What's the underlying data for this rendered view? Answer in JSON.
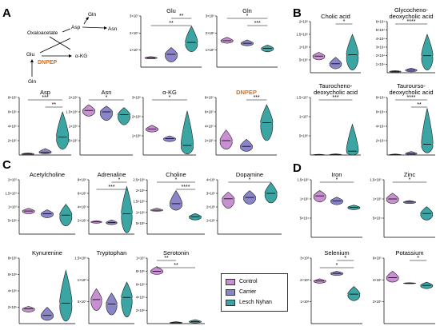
{
  "figure": {
    "panel_letters": [
      "A",
      "B",
      "C",
      "D"
    ],
    "pathway": {
      "nodes": [
        "Oxaloacetate",
        "Asp",
        "Asn",
        "Gln",
        "Glu",
        "α-KG",
        "Gln"
      ],
      "enzyme": "DNPEP",
      "enzyme_color": "#e36c0a"
    },
    "legend": {
      "items": [
        {
          "label": "Control",
          "color": "#c88fd2"
        },
        {
          "label": "Carrier",
          "color": "#8a84c8"
        },
        {
          "label": "Lesch Nyhan",
          "color": "#3aa5a2"
        }
      ]
    }
  },
  "chart_data": [
    {
      "type": "violin",
      "panel": "A",
      "title": "Glu",
      "yticks": [
        "1×10⁷",
        "2×10⁷",
        "3×10⁷"
      ],
      "ylim": [
        0,
        30000000
      ],
      "categories": [
        "Control",
        "Carrier",
        "Lesch Nyhan"
      ],
      "medians": [
        5500000,
        7500000,
        14500000
      ],
      "ranges": [
        [
          4800000,
          6200000
        ],
        [
          3000000,
          11500000
        ],
        [
          9000000,
          24000000
        ]
      ],
      "significance": [
        {
          "pair": [
            1,
            2
          ],
          "label": "**"
        },
        {
          "pair": [
            0,
            2
          ],
          "label": "**"
        }
      ]
    },
    {
      "type": "violin",
      "panel": "A",
      "title": "Gln",
      "yticks": [
        "1×10⁸",
        "2×10⁸",
        "3×10⁸"
      ],
      "ylim": [
        0,
        300000000
      ],
      "categories": [
        "Control",
        "Carrier",
        "Lesch Nyhan"
      ],
      "medians": [
        155000000,
        140000000,
        110000000
      ],
      "ranges": [
        [
          140000000,
          175000000
        ],
        [
          125000000,
          160000000
        ],
        [
          90000000,
          130000000
        ]
      ],
      "significance": [
        {
          "pair": [
            0,
            2
          ],
          "label": "*"
        },
        {
          "pair": [
            1,
            2
          ],
          "label": "***"
        }
      ]
    },
    {
      "type": "violin",
      "panel": "A",
      "title": "Asp",
      "yticks": [
        "2×10⁵",
        "4×10⁵",
        "6×10⁵",
        "8×10⁵"
      ],
      "ylim": [
        0,
        800000
      ],
      "categories": [
        "Control",
        "Carrier",
        "Lesch Nyhan"
      ],
      "medians": [
        15000,
        40000,
        250000
      ],
      "ranges": [
        [
          5000,
          30000
        ],
        [
          15000,
          90000
        ],
        [
          80000,
          600000
        ]
      ],
      "significance": [
        {
          "pair": [
            0,
            2
          ],
          "label": "***"
        },
        {
          "pair": [
            1,
            2
          ],
          "label": "**"
        }
      ]
    },
    {
      "type": "violin",
      "panel": "A",
      "title": "Asn",
      "yticks": [
        "5×10⁵",
        "1×10⁶",
        "1.5×10⁶",
        "2×10⁶"
      ],
      "ylim": [
        0,
        2000000
      ],
      "categories": [
        "Control",
        "Carrier",
        "Lesch Nyhan"
      ],
      "medians": [
        1550000,
        1500000,
        1400000
      ],
      "ranges": [
        [
          1350000,
          1750000
        ],
        [
          1200000,
          1700000
        ],
        [
          1050000,
          1650000
        ]
      ],
      "significance": [
        {
          "pair": [
            0,
            2
          ],
          "label": "*"
        }
      ]
    },
    {
      "type": "violin",
      "panel": "A",
      "title": "α-KG",
      "yticks": [
        "1×10⁶",
        "2×10⁶",
        "3×10⁶"
      ],
      "ylim": [
        0,
        3000000
      ],
      "categories": [
        "Control",
        "Carrier",
        "Lesch Nyhan"
      ],
      "medians": [
        1350000,
        850000,
        500000
      ],
      "ranges": [
        [
          1200000,
          1550000
        ],
        [
          700000,
          1000000
        ],
        [
          50000,
          2300000
        ]
      ],
      "significance": [
        {
          "pair": [
            0,
            2
          ],
          "label": "*"
        }
      ]
    },
    {
      "type": "violin",
      "panel": "A",
      "title": "DNPEP",
      "title_color": "#e36c0a",
      "yticks": [
        "2×10⁵",
        "4×10⁵",
        "6×10⁵",
        "8×10⁵"
      ],
      "ylim": [
        0,
        800000
      ],
      "categories": [
        "Control",
        "Carrier",
        "Lesch Nyhan"
      ],
      "medians": [
        200000,
        120000,
        450000
      ],
      "ranges": [
        [
          80000,
          350000
        ],
        [
          50000,
          220000
        ],
        [
          200000,
          700000
        ]
      ],
      "significance": [
        {
          "pair": [
            1,
            2
          ],
          "label": "***"
        }
      ]
    },
    {
      "type": "violin",
      "panel": "B",
      "title": "Cholic acid",
      "yticks": [
        "5×10⁵",
        "1×10⁶",
        "1.5×10⁶",
        "2×10⁶"
      ],
      "ylim": [
        0,
        2000000
      ],
      "categories": [
        "Control",
        "Carrier",
        "Lesch Nyhan"
      ],
      "medians": [
        650000,
        350000,
        700000
      ],
      "ranges": [
        [
          500000,
          800000
        ],
        [
          150000,
          600000
        ],
        [
          100000,
          1500000
        ]
      ],
      "significance": [
        {
          "pair": [
            1,
            2
          ],
          "label": "*"
        }
      ]
    },
    {
      "type": "violin",
      "panel": "B",
      "title": "Glycocheno-\ndeoxycholic acid",
      "yticks": [
        "1×10⁴",
        "2×10⁴",
        "3×10⁴",
        "4×10⁴",
        "5×10⁴",
        "6×10⁴"
      ],
      "ylim": [
        0,
        60000
      ],
      "categories": [
        "Control",
        "Carrier",
        "Lesch Nyhan"
      ],
      "medians": [
        1500,
        3000,
        20000
      ],
      "ranges": [
        [
          500,
          2500
        ],
        [
          1000,
          5500
        ],
        [
          3000,
          45000
        ]
      ],
      "significance": [
        {
          "pair": [
            0,
            2
          ],
          "label": "****"
        }
      ]
    },
    {
      "type": "violin",
      "panel": "B",
      "title": "Taurocheno-\ndeoxycholic acid",
      "yticks": [
        "5×10⁶",
        "1×10⁷",
        "1.5×10⁷"
      ],
      "ylim": [
        0,
        15000000
      ],
      "categories": [
        "Control",
        "Carrier",
        "Lesch Nyhan"
      ],
      "medians": [
        50000,
        100000,
        1000000
      ],
      "ranges": [
        [
          0,
          200000
        ],
        [
          0,
          300000
        ],
        [
          0,
          8000000
        ]
      ],
      "significance": [
        {
          "pair": [
            0,
            2
          ],
          "label": "***"
        }
      ]
    },
    {
      "type": "violin",
      "panel": "B",
      "title": "Taurourso-\ndeoxycholic acid",
      "yticks": [
        "2×10⁴",
        "4×10⁴",
        "6×10⁴",
        "8×10⁴"
      ],
      "ylim": [
        0,
        80000
      ],
      "categories": [
        "Control",
        "Carrier",
        "Lesch Nyhan"
      ],
      "medians": [
        500,
        2000,
        15000
      ],
      "ranges": [
        [
          0,
          1500
        ],
        [
          500,
          5000
        ],
        [
          3000,
          65000
        ]
      ],
      "significance": [
        {
          "pair": [
            0,
            2
          ],
          "label": "****"
        },
        {
          "pair": [
            1,
            2
          ],
          "label": "**"
        }
      ]
    },
    {
      "type": "violin",
      "panel": "C",
      "title": "Acetylcholine",
      "yticks": [
        "5×10⁶",
        "1×10⁷",
        "1.5×10⁷",
        "2×10⁷"
      ],
      "ylim": [
        0,
        20000000
      ],
      "categories": [
        "Control",
        "Carrier",
        "Lesch Nyhan"
      ],
      "medians": [
        8500000,
        7500000,
        7000000
      ],
      "ranges": [
        [
          7500000,
          9500000
        ],
        [
          6000000,
          9000000
        ],
        [
          3000000,
          11000000
        ]
      ],
      "significance": []
    },
    {
      "type": "violin",
      "panel": "C",
      "title": "Adrenaline",
      "yticks": [
        "2×10⁶",
        "4×10⁶",
        "6×10⁶",
        "8×10⁶"
      ],
      "ylim": [
        0,
        8000000
      ],
      "categories": [
        "Control",
        "Carrier",
        "Lesch Nyhan"
      ],
      "medians": [
        1800000,
        1700000,
        3000000
      ],
      "ranges": [
        [
          1600000,
          2000000
        ],
        [
          1400000,
          2100000
        ],
        [
          200000,
          7000000
        ]
      ],
      "significance": [
        {
          "pair": [
            1,
            2
          ],
          "label": "*"
        },
        {
          "pair": [
            0,
            2
          ],
          "label": "***"
        }
      ]
    },
    {
      "type": "violin",
      "panel": "C",
      "title": "Choline",
      "yticks": [
        "5×10⁵",
        "1×10⁶",
        "1.5×10⁶",
        "2×10⁶",
        "2.5×10⁶"
      ],
      "ylim": [
        0,
        2500000
      ],
      "categories": [
        "Control",
        "Carrier",
        "Lesch Nyhan"
      ],
      "medians": [
        1100000,
        1400000,
        800000
      ],
      "ranges": [
        [
          1050000,
          1200000
        ],
        [
          1100000,
          2000000
        ],
        [
          650000,
          950000
        ]
      ],
      "significance": [
        {
          "pair": [
            0,
            2
          ],
          "label": "*"
        },
        {
          "pair": [
            1,
            2
          ],
          "label": "****"
        }
      ]
    },
    {
      "type": "violin",
      "panel": "C",
      "title": "Dopamine",
      "yticks": [
        "1×10⁶",
        "2×10⁶",
        "3×10⁶",
        "4×10⁶"
      ],
      "ylim": [
        0,
        4000000
      ],
      "categories": [
        "Control",
        "Carrier",
        "Lesch Nyhan"
      ],
      "medians": [
        2600000,
        2700000,
        3000000
      ],
      "ranges": [
        [
          1900000,
          3100000
        ],
        [
          2200000,
          3200000
        ],
        [
          2300000,
          3800000
        ]
      ],
      "significance": [
        {
          "pair": [
            0,
            2
          ],
          "label": "*"
        }
      ]
    },
    {
      "type": "violin",
      "panel": "C",
      "title": "Kynurenine",
      "yticks": [
        "2×10⁶",
        "4×10⁶",
        "6×10⁶",
        "8×10⁶"
      ],
      "ylim": [
        0,
        8000000
      ],
      "categories": [
        "Control",
        "Carrier",
        "Lesch Nyhan"
      ],
      "medians": [
        1800000,
        1000000,
        2500000
      ],
      "ranges": [
        [
          1400000,
          2100000
        ],
        [
          400000,
          2000000
        ],
        [
          300000,
          6500000
        ]
      ],
      "significance": []
    },
    {
      "type": "violin",
      "panel": "C",
      "title": "Tryptophan",
      "yticks": [
        "5×10⁷",
        "1×10⁸",
        "1.5×10⁸"
      ],
      "ylim": [
        0,
        150000000
      ],
      "categories": [
        "Control",
        "Carrier",
        "Lesch Nyhan"
      ],
      "medians": [
        55000000,
        45000000,
        60000000
      ],
      "ranges": [
        [
          30000000,
          80000000
        ],
        [
          20000000,
          70000000
        ],
        [
          15000000,
          95000000
        ]
      ],
      "significance": []
    },
    {
      "type": "violin",
      "panel": "C",
      "title": "Serotonin",
      "yticks": [
        "2×10⁶",
        "4×10⁶",
        "6×10⁶",
        "8×10⁶",
        "1×10⁷"
      ],
      "ylim": [
        0,
        10000000
      ],
      "categories": [
        "Control",
        "Carrier",
        "Lesch Nyhan"
      ],
      "medians": [
        8000000,
        150000,
        300000
      ],
      "ranges": [
        [
          7500000,
          8700000
        ],
        [
          50000,
          300000
        ],
        [
          100000,
          600000
        ]
      ],
      "significance": [
        {
          "pair": [
            0,
            1
          ],
          "label": "**"
        },
        {
          "pair": [
            0,
            2
          ],
          "label": "**"
        }
      ]
    },
    {
      "type": "violin",
      "panel": "D",
      "title": "Iron",
      "yticks": [
        "5×10⁴",
        "1×10⁵",
        "1.5×10⁵"
      ],
      "ylim": [
        0,
        150000
      ],
      "categories": [
        "Control",
        "Carrier",
        "Lesch Nyhan"
      ],
      "medians": [
        108000,
        95000,
        78000
      ],
      "ranges": [
        [
          92000,
          122000
        ],
        [
          85000,
          105000
        ],
        [
          72000,
          84000
        ]
      ],
      "significance": [
        {
          "pair": [
            0,
            2
          ],
          "label": "*"
        }
      ]
    },
    {
      "type": "violin",
      "panel": "D",
      "title": "Zinc",
      "yticks": [
        "5×10⁴",
        "1×10⁵",
        "1.5×10⁵"
      ],
      "ylim": [
        0,
        150000
      ],
      "categories": [
        "Control",
        "Carrier",
        "Lesch Nyhan"
      ],
      "medians": [
        100000,
        92000,
        62000
      ],
      "ranges": [
        [
          88000,
          115000
        ],
        [
          88000,
          96000
        ],
        [
          45000,
          80000
        ]
      ],
      "significance": [
        {
          "pair": [
            0,
            2
          ],
          "label": "*"
        }
      ]
    },
    {
      "type": "violin",
      "panel": "D",
      "title": "Selenium",
      "yticks": [
        "1×10³",
        "2×10³",
        "3×10³"
      ],
      "ylim": [
        0,
        3000
      ],
      "categories": [
        "Control",
        "Carrier",
        "Lesch Nyhan"
      ],
      "medians": [
        1950,
        2300,
        1350
      ],
      "ranges": [
        [
          1850,
          2050
        ],
        [
          2200,
          2400
        ],
        [
          1050,
          1700
        ]
      ],
      "significance": [
        {
          "pair": [
            1,
            2
          ],
          "label": "*"
        },
        {
          "pair": [
            0,
            2
          ],
          "label": "*"
        }
      ]
    },
    {
      "type": "violin",
      "panel": "D",
      "title": "Potassium",
      "yticks": [
        "2×10⁵",
        "4×10⁵",
        "6×10⁵"
      ],
      "ylim": [
        0,
        600000
      ],
      "categories": [
        "Control",
        "Carrier",
        "Lesch Nyhan"
      ],
      "medians": [
        420000,
        370000,
        350000
      ],
      "ranges": [
        [
          380000,
          480000
        ],
        [
          365000,
          375000
        ],
        [
          320000,
          380000
        ]
      ],
      "significance": [
        {
          "pair": [
            1,
            2
          ],
          "label": "*"
        }
      ]
    }
  ]
}
